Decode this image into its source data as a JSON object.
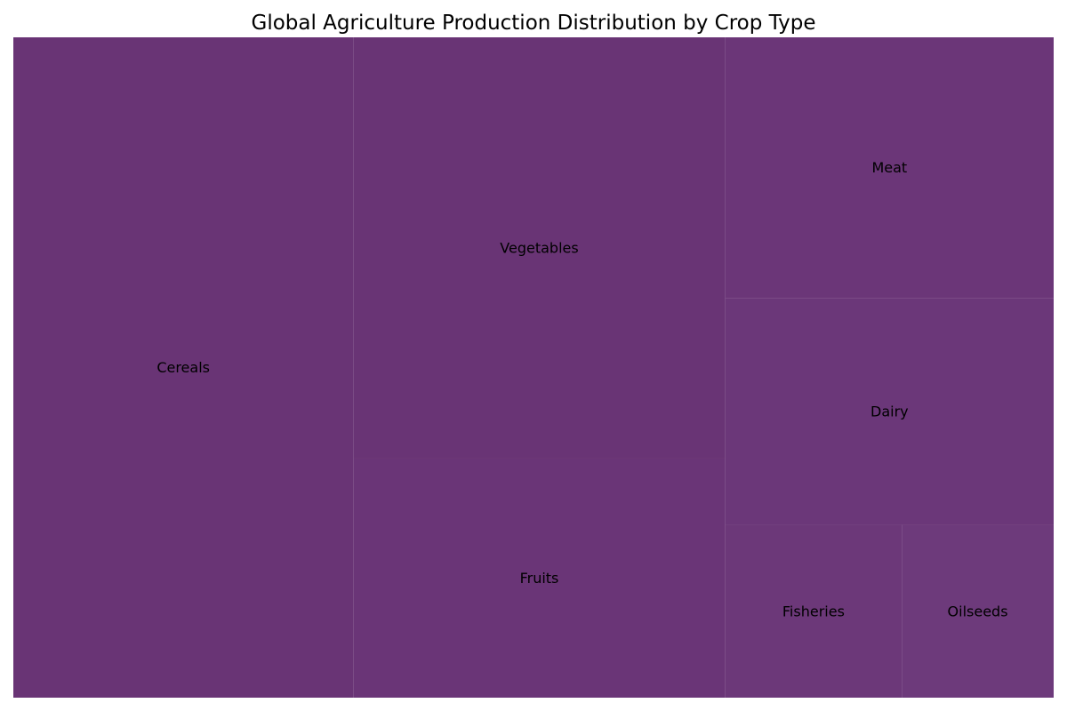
{
  "chart_data": {
    "type": "treemap",
    "title": "Global Agriculture Production Distribution by Crop Type",
    "items": [
      {
        "label": "Cereals",
        "value": 26.5,
        "color": "#693475"
      },
      {
        "label": "Vegetables",
        "value": 18.5,
        "color": "#693475"
      },
      {
        "label": "Fruits",
        "value": 10.5,
        "color": "#6a3577"
      },
      {
        "label": "Meat",
        "value": 10.1,
        "color": "#6b3678"
      },
      {
        "label": "Dairy",
        "value": 8.8,
        "color": "#6b3779"
      },
      {
        "label": "Fisheries",
        "value": 3.6,
        "color": "#6c3879"
      },
      {
        "label": "Oilseeds",
        "value": 3.1,
        "color": "#6d3a7b"
      }
    ]
  }
}
